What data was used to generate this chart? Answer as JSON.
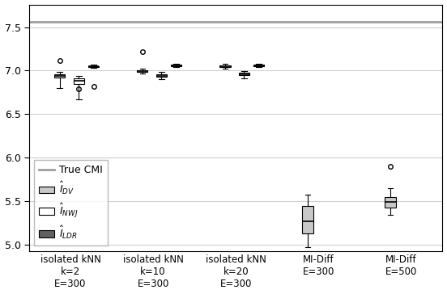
{
  "true_cmi": 7.565,
  "ylim": [
    4.93,
    7.76
  ],
  "yticks": [
    5.0,
    5.5,
    6.0,
    6.5,
    7.0,
    7.5
  ],
  "group_labels": [
    "isolated kNN\nk=2\nE=300",
    "isolated kNN\nk=10\nE=300",
    "isolated kNN\nk=20\nE=300",
    "MI-Diff\nE=300",
    "MI-Diff\nE=500"
  ],
  "box_data": {
    "DV": [
      {
        "med": 6.943,
        "q1": 6.92,
        "q3": 6.96,
        "whislo": 6.8,
        "whishi": 6.99,
        "fliers": [
          7.115
        ]
      },
      {
        "med": 6.998,
        "q1": 6.988,
        "q3": 7.005,
        "whislo": 6.968,
        "whishi": 7.02,
        "fliers": [
          7.22
        ]
      },
      {
        "med": 7.05,
        "q1": 7.04,
        "q3": 7.06,
        "whislo": 7.025,
        "whishi": 7.075,
        "fliers": []
      },
      {
        "med": 5.27,
        "q1": 5.13,
        "q3": 5.45,
        "whislo": 4.97,
        "whishi": 5.58,
        "fliers": []
      },
      {
        "med": 5.49,
        "q1": 5.43,
        "q3": 5.55,
        "whislo": 5.34,
        "whishi": 5.65,
        "fliers": [
          5.9
        ]
      }
    ],
    "NWJ": [
      {
        "med": 6.88,
        "q1": 6.848,
        "q3": 6.91,
        "whislo": 6.672,
        "whishi": 6.935,
        "fliers": [
          6.79
        ]
      },
      {
        "med": 6.94,
        "q1": 6.928,
        "q3": 6.958,
        "whislo": 6.9,
        "whishi": 6.988,
        "fliers": []
      },
      {
        "med": 6.958,
        "q1": 6.945,
        "q3": 6.972,
        "whislo": 6.915,
        "whishi": 6.998,
        "fliers": []
      },
      null,
      null
    ],
    "LDR": [
      {
        "med": 7.048,
        "q1": 7.042,
        "q3": 7.055,
        "whislo": 7.03,
        "whishi": 7.068,
        "fliers": [
          6.815
        ]
      },
      {
        "med": 7.058,
        "q1": 7.05,
        "q3": 7.065,
        "whislo": 7.038,
        "whishi": 7.075,
        "fliers": []
      },
      {
        "med": 7.062,
        "q1": 7.055,
        "q3": 7.07,
        "whislo": 7.042,
        "whishi": 7.08,
        "fliers": []
      },
      null,
      null
    ]
  },
  "colors": {
    "DV": "#c8c8c8",
    "NWJ": "#ffffff",
    "LDR": "#606060",
    "true_cmi_line": "#9e9e9e"
  },
  "figsize": [
    5.52,
    3.64
  ],
  "dpi": 100,
  "legend_labels": [
    "True CMI",
    "$\\hat{I}_{DV}$",
    "$\\hat{I}_{NWJ}$",
    "$\\hat{I}_{LDR}$"
  ]
}
